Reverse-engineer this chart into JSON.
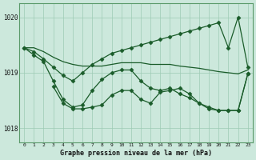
{
  "title": "Graphe pression niveau de la mer (hPa)",
  "bg_color": "#cce8dc",
  "grid_color": "#9ecbb4",
  "line_color": "#1a5c2a",
  "ylim": [
    1017.75,
    1020.25
  ],
  "xlim": [
    -0.5,
    23.5
  ],
  "yticks": [
    1018,
    1019,
    1020
  ],
  "xticks": [
    0,
    1,
    2,
    3,
    4,
    5,
    6,
    7,
    8,
    9,
    10,
    11,
    12,
    13,
    14,
    15,
    16,
    17,
    18,
    19,
    20,
    21,
    22,
    23
  ],
  "line_flat_x": [
    0,
    1,
    2,
    3,
    4,
    5,
    6,
    7,
    8,
    9,
    10,
    11,
    12,
    13,
    14,
    15,
    16,
    17,
    18,
    19,
    20,
    21,
    22,
    23
  ],
  "line_flat_y": [
    1019.45,
    1019.45,
    1019.38,
    1019.28,
    1019.2,
    1019.15,
    1019.12,
    1019.12,
    1019.12,
    1019.15,
    1019.18,
    1019.18,
    1019.18,
    1019.15,
    1019.15,
    1019.15,
    1019.12,
    1019.1,
    1019.08,
    1019.05,
    1019.02,
    1019.0,
    1018.98,
    1019.05
  ],
  "line_rise_x": [
    0,
    1,
    2,
    3,
    4,
    5,
    6,
    7,
    8,
    9,
    10,
    11,
    12,
    13,
    14,
    15,
    16,
    17,
    18,
    19,
    20,
    21,
    22,
    23
  ],
  "line_rise_y": [
    1019.45,
    1019.38,
    1019.25,
    1019.1,
    1018.95,
    1018.85,
    1019.0,
    1019.15,
    1019.25,
    1019.35,
    1019.4,
    1019.45,
    1019.5,
    1019.55,
    1019.6,
    1019.65,
    1019.7,
    1019.75,
    1019.8,
    1019.85,
    1019.9,
    1019.45,
    1020.0,
    1019.1
  ],
  "line_low_x": [
    3,
    4,
    5,
    6,
    7,
    8,
    9,
    10,
    11,
    12,
    13,
    14,
    15,
    16,
    17,
    18,
    19,
    20,
    21,
    22,
    23
  ],
  "line_low_y": [
    1018.75,
    1018.45,
    1018.35,
    1018.35,
    1018.38,
    1018.42,
    1018.6,
    1018.68,
    1018.68,
    1018.52,
    1018.45,
    1018.65,
    1018.68,
    1018.72,
    1018.62,
    1018.45,
    1018.38,
    1018.32,
    1018.32,
    1018.32,
    1018.98
  ],
  "line_cross_x": [
    0,
    1,
    2,
    3,
    4,
    5,
    6,
    7,
    8,
    9,
    10,
    11,
    12,
    13,
    14,
    15,
    16,
    17,
    18,
    19,
    20,
    21,
    22,
    23
  ],
  "line_cross_y": [
    1019.45,
    1019.32,
    1019.2,
    1018.85,
    1018.52,
    1018.38,
    1018.42,
    1018.68,
    1018.88,
    1019.0,
    1019.05,
    1019.05,
    1018.85,
    1018.72,
    1018.68,
    1018.72,
    1018.62,
    1018.55,
    1018.45,
    1018.35,
    1018.32,
    1018.32,
    1018.32,
    1018.98
  ]
}
